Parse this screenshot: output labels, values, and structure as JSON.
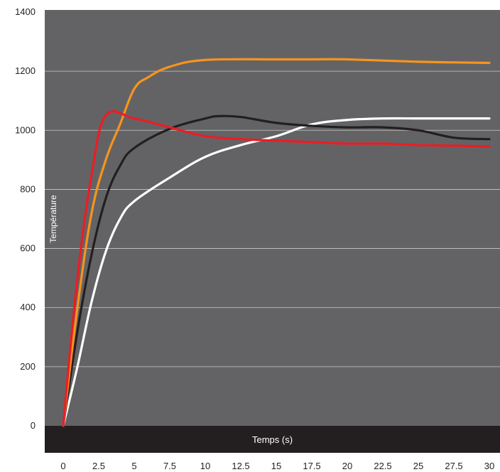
{
  "chart_data": {
    "type": "line",
    "title": "",
    "xlabel": "Temps (s)",
    "ylabel": "Température",
    "xlim": [
      0,
      30
    ],
    "ylim": [
      0,
      1400
    ],
    "x_ticks": [
      "0",
      "2.5",
      "5",
      "7.5",
      "10",
      "12.5",
      "15",
      "17.5",
      "20",
      "22.5",
      "25",
      "27.5",
      "30"
    ],
    "y_ticks": [
      "0",
      "200",
      "400",
      "600",
      "800",
      "1000",
      "1200",
      "1400"
    ],
    "grid": "horizontal",
    "legend": "none",
    "background_color": "#636365",
    "axis_band_color": "#231f20",
    "gridline_color": "#c8c8c8",
    "series": [
      {
        "color": "#ffffff",
        "points": [
          [
            0,
            0
          ],
          [
            1,
            200
          ],
          [
            2,
            420
          ],
          [
            3,
            590
          ],
          [
            4,
            700
          ],
          [
            5,
            760
          ],
          [
            7.5,
            840
          ],
          [
            10,
            910
          ],
          [
            12.5,
            950
          ],
          [
            15,
            980
          ],
          [
            17.5,
            1020
          ],
          [
            20,
            1035
          ],
          [
            22.5,
            1040
          ],
          [
            25,
            1040
          ],
          [
            27.5,
            1040
          ],
          [
            30,
            1040
          ]
        ]
      },
      {
        "color": "#231f20",
        "points": [
          [
            0,
            0
          ],
          [
            1,
            320
          ],
          [
            2,
            580
          ],
          [
            3,
            770
          ],
          [
            4,
            880
          ],
          [
            5,
            940
          ],
          [
            7.5,
            1005
          ],
          [
            10,
            1040
          ],
          [
            11,
            1048
          ],
          [
            12.5,
            1045
          ],
          [
            15,
            1025
          ],
          [
            17.5,
            1015
          ],
          [
            20,
            1010
          ],
          [
            22.5,
            1010
          ],
          [
            25,
            1000
          ],
          [
            27.5,
            975
          ],
          [
            30,
            970
          ]
        ]
      },
      {
        "color": "#f7941d",
        "points": [
          [
            0,
            0
          ],
          [
            1,
            400
          ],
          [
            2,
            720
          ],
          [
            3,
            900
          ],
          [
            4,
            1020
          ],
          [
            5,
            1140
          ],
          [
            6,
            1180
          ],
          [
            7.5,
            1215
          ],
          [
            10,
            1238
          ],
          [
            15,
            1240
          ],
          [
            17.5,
            1240
          ],
          [
            20,
            1240
          ],
          [
            25,
            1232
          ],
          [
            30,
            1228
          ]
        ]
      },
      {
        "color": "#ed1c24",
        "points": [
          [
            0,
            0
          ],
          [
            1,
            500
          ],
          [
            2,
            850
          ],
          [
            3,
            1050
          ],
          [
            5,
            1040
          ],
          [
            7.5,
            1010
          ],
          [
            10,
            980
          ],
          [
            12.5,
            970
          ],
          [
            15,
            965
          ],
          [
            17.5,
            960
          ],
          [
            20,
            955
          ],
          [
            22.5,
            955
          ],
          [
            25,
            950
          ],
          [
            27.5,
            948
          ],
          [
            30,
            945
          ]
        ]
      }
    ]
  }
}
